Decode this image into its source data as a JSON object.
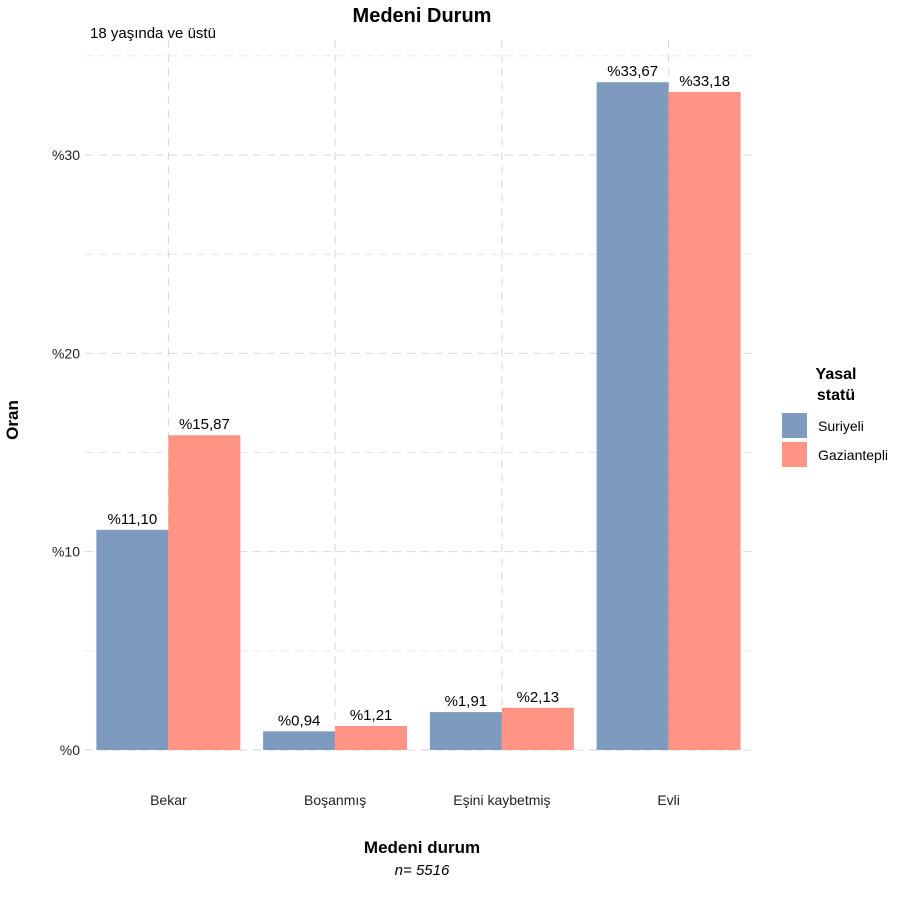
{
  "chart_data": {
    "type": "bar",
    "title": "Medeni Durum",
    "subtitle": "18 yaşında ve üstü",
    "xlabel": "Medeni durum",
    "ylabel": "Oran",
    "caption": "n= 5516",
    "categories": [
      "Bekar",
      "Boşanmış",
      "Eşini kaybetmiş",
      "Evli"
    ],
    "series": [
      {
        "name": "Suriyeli",
        "color": "#7f9abf",
        "values": [
          11.1,
          0.94,
          1.91,
          33.67
        ],
        "labels": [
          "%11,10",
          "%0,94",
          "%1,91",
          "%33,67"
        ]
      },
      {
        "name": "Gaziantepli",
        "color": "#ff9485",
        "values": [
          15.87,
          1.21,
          2.13,
          33.18
        ],
        "labels": [
          "%15,87",
          "%1,21",
          "%2,13",
          "%33,18"
        ]
      }
    ],
    "ylim": [
      0,
      35
    ],
    "yticks": [
      0,
      10,
      20,
      30
    ],
    "ytick_labels": [
      "%0",
      "%10",
      "%20",
      "%30"
    ],
    "grid": true,
    "legend": {
      "title_line1": "Yasal",
      "title_line2": "statü",
      "position": "right"
    }
  }
}
